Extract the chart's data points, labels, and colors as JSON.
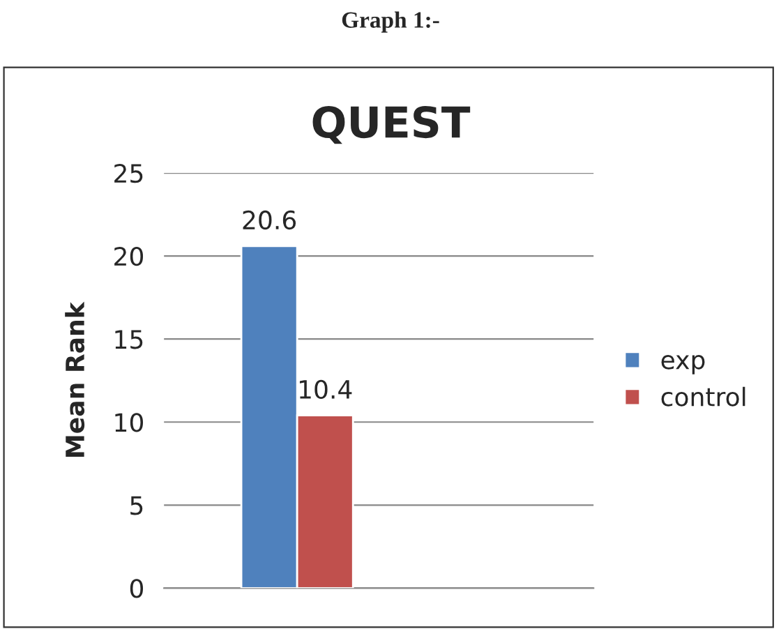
{
  "chart_data": {
    "type": "bar",
    "title": "QUEST",
    "ylabel": "Mean Rank",
    "annotations": [
      "Graph 1:-"
    ],
    "categories": [
      null
    ],
    "series": [
      {
        "name": "exp",
        "color": "#4f81bd",
        "values": [
          20.6
        ]
      },
      {
        "name": "control",
        "color": "#c0504d",
        "values": [
          10.4
        ]
      }
    ],
    "ylim": [
      0,
      25
    ],
    "yticks": [
      0,
      5,
      10,
      15,
      20,
      25
    ],
    "grid": "y",
    "legend": "right",
    "data_labels": true
  }
}
